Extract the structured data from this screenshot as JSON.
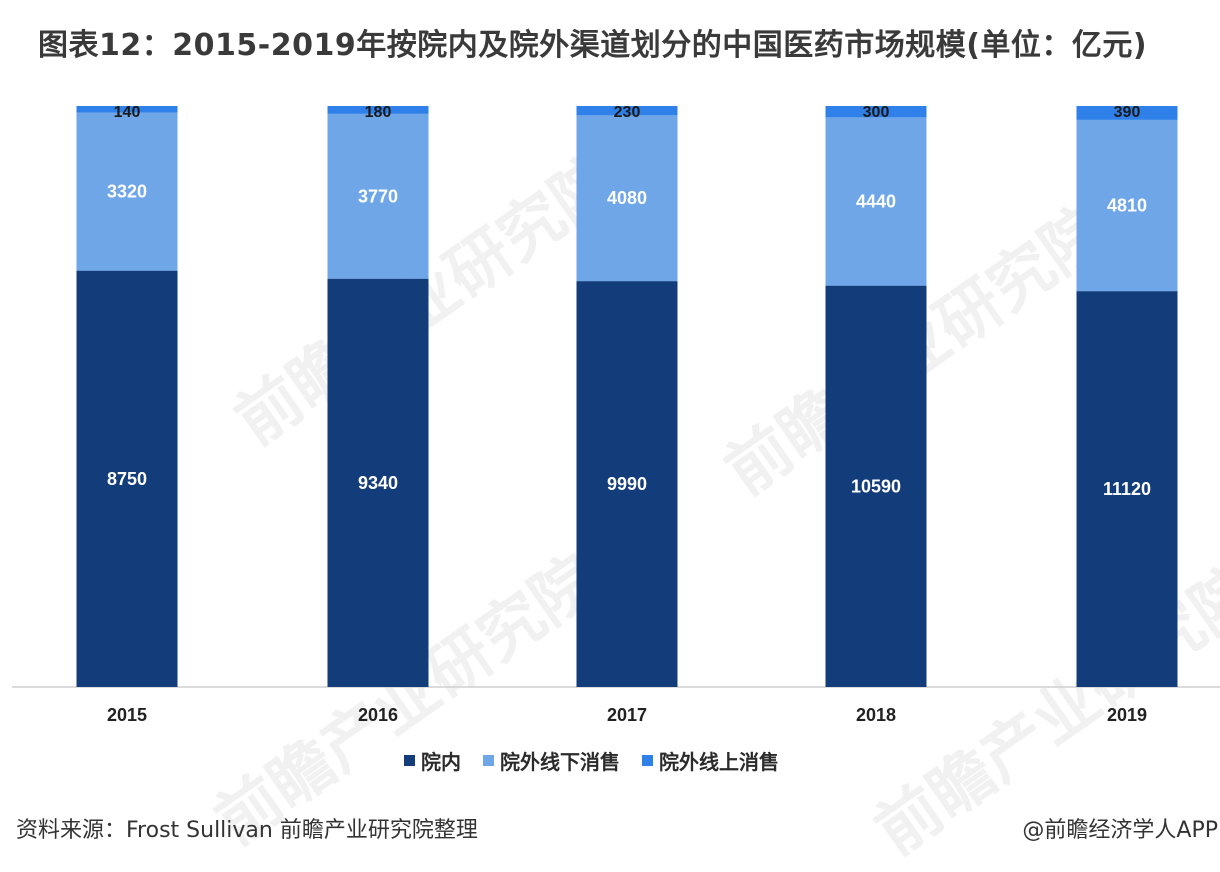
{
  "title": "图表12：2015-2019年按院内及院外渠道划分的中国医药市场规模(单位：亿元)",
  "chart_data": {
    "type": "bar",
    "stacked": true,
    "categories": [
      "2015",
      "2016",
      "2017",
      "2018",
      "2019"
    ],
    "series": [
      {
        "name": "院内",
        "color": "#123d7a",
        "values": [
          8750,
          9340,
          9990,
          10590,
          11120
        ]
      },
      {
        "name": "院外线下消售",
        "color": "#6ea6e8",
        "values": [
          3320,
          3770,
          4080,
          4440,
          4810
        ]
      },
      {
        "name": "院外线上消售",
        "color": "#2f80e8",
        "values": [
          140,
          180,
          230,
          300,
          390
        ]
      }
    ],
    "legend_position": "bottom"
  },
  "source": "资料来源：Frost Sullivan 前瞻产业研究院整理",
  "credit": "@前瞻经济学人APP",
  "watermark_text": "前瞻产业研究院"
}
